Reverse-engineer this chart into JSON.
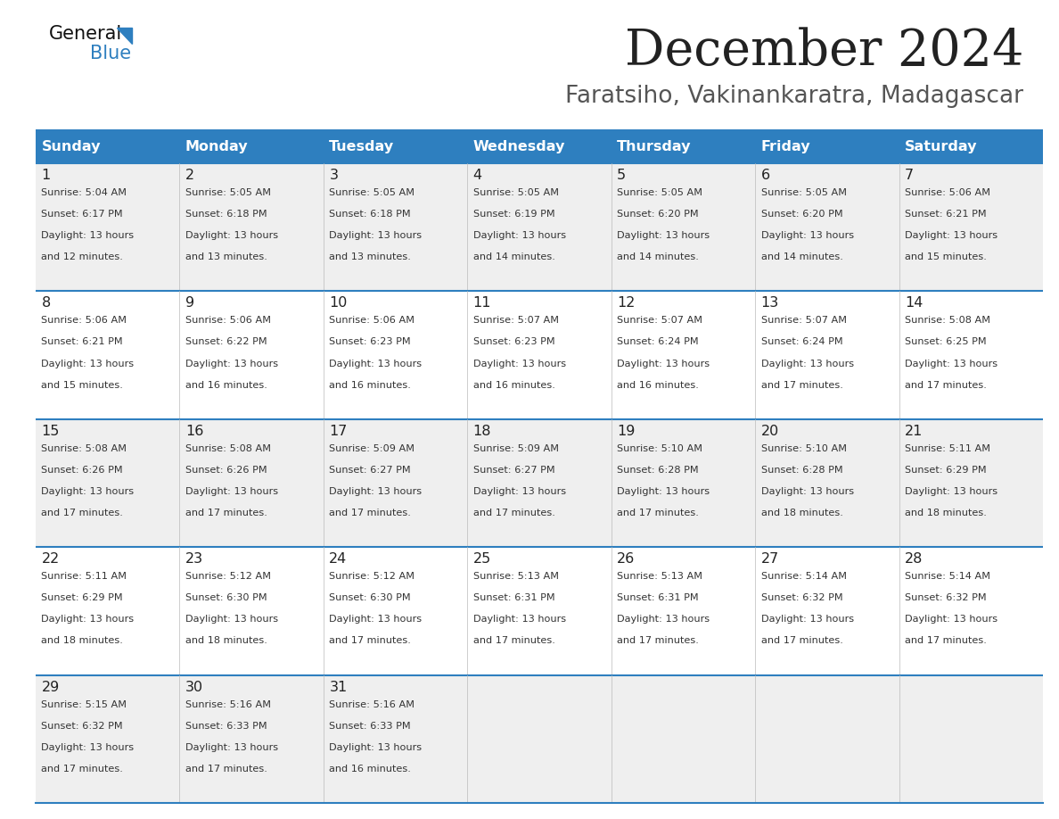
{
  "title": "December 2024",
  "subtitle": "Faratsiho, Vakinankaratra, Madagascar",
  "days_of_week": [
    "Sunday",
    "Monday",
    "Tuesday",
    "Wednesday",
    "Thursday",
    "Friday",
    "Saturday"
  ],
  "header_bg": "#2E7FBF",
  "header_text": "#FFFFFF",
  "row_bg_light": "#EFEFEF",
  "row_bg_white": "#FFFFFF",
  "day_num_color": "#222222",
  "text_color": "#333333",
  "line_color": "#2E7FBF",
  "title_color": "#222222",
  "subtitle_color": "#555555",
  "calendar": [
    [
      {
        "day": 1,
        "sunrise": "5:04 AM",
        "sunset": "6:17 PM",
        "daylight": "13 hours and 12 minutes."
      },
      {
        "day": 2,
        "sunrise": "5:05 AM",
        "sunset": "6:18 PM",
        "daylight": "13 hours and 13 minutes."
      },
      {
        "day": 3,
        "sunrise": "5:05 AM",
        "sunset": "6:18 PM",
        "daylight": "13 hours and 13 minutes."
      },
      {
        "day": 4,
        "sunrise": "5:05 AM",
        "sunset": "6:19 PM",
        "daylight": "13 hours and 14 minutes."
      },
      {
        "day": 5,
        "sunrise": "5:05 AM",
        "sunset": "6:20 PM",
        "daylight": "13 hours and 14 minutes."
      },
      {
        "day": 6,
        "sunrise": "5:05 AM",
        "sunset": "6:20 PM",
        "daylight": "13 hours and 14 minutes."
      },
      {
        "day": 7,
        "sunrise": "5:06 AM",
        "sunset": "6:21 PM",
        "daylight": "13 hours and 15 minutes."
      }
    ],
    [
      {
        "day": 8,
        "sunrise": "5:06 AM",
        "sunset": "6:21 PM",
        "daylight": "13 hours and 15 minutes."
      },
      {
        "day": 9,
        "sunrise": "5:06 AM",
        "sunset": "6:22 PM",
        "daylight": "13 hours and 16 minutes."
      },
      {
        "day": 10,
        "sunrise": "5:06 AM",
        "sunset": "6:23 PM",
        "daylight": "13 hours and 16 minutes."
      },
      {
        "day": 11,
        "sunrise": "5:07 AM",
        "sunset": "6:23 PM",
        "daylight": "13 hours and 16 minutes."
      },
      {
        "day": 12,
        "sunrise": "5:07 AM",
        "sunset": "6:24 PM",
        "daylight": "13 hours and 16 minutes."
      },
      {
        "day": 13,
        "sunrise": "5:07 AM",
        "sunset": "6:24 PM",
        "daylight": "13 hours and 17 minutes."
      },
      {
        "day": 14,
        "sunrise": "5:08 AM",
        "sunset": "6:25 PM",
        "daylight": "13 hours and 17 minutes."
      }
    ],
    [
      {
        "day": 15,
        "sunrise": "5:08 AM",
        "sunset": "6:26 PM",
        "daylight": "13 hours and 17 minutes."
      },
      {
        "day": 16,
        "sunrise": "5:08 AM",
        "sunset": "6:26 PM",
        "daylight": "13 hours and 17 minutes."
      },
      {
        "day": 17,
        "sunrise": "5:09 AM",
        "sunset": "6:27 PM",
        "daylight": "13 hours and 17 minutes."
      },
      {
        "day": 18,
        "sunrise": "5:09 AM",
        "sunset": "6:27 PM",
        "daylight": "13 hours and 17 minutes."
      },
      {
        "day": 19,
        "sunrise": "5:10 AM",
        "sunset": "6:28 PM",
        "daylight": "13 hours and 17 minutes."
      },
      {
        "day": 20,
        "sunrise": "5:10 AM",
        "sunset": "6:28 PM",
        "daylight": "13 hours and 18 minutes."
      },
      {
        "day": 21,
        "sunrise": "5:11 AM",
        "sunset": "6:29 PM",
        "daylight": "13 hours and 18 minutes."
      }
    ],
    [
      {
        "day": 22,
        "sunrise": "5:11 AM",
        "sunset": "6:29 PM",
        "daylight": "13 hours and 18 minutes."
      },
      {
        "day": 23,
        "sunrise": "5:12 AM",
        "sunset": "6:30 PM",
        "daylight": "13 hours and 18 minutes."
      },
      {
        "day": 24,
        "sunrise": "5:12 AM",
        "sunset": "6:30 PM",
        "daylight": "13 hours and 17 minutes."
      },
      {
        "day": 25,
        "sunrise": "5:13 AM",
        "sunset": "6:31 PM",
        "daylight": "13 hours and 17 minutes."
      },
      {
        "day": 26,
        "sunrise": "5:13 AM",
        "sunset": "6:31 PM",
        "daylight": "13 hours and 17 minutes."
      },
      {
        "day": 27,
        "sunrise": "5:14 AM",
        "sunset": "6:32 PM",
        "daylight": "13 hours and 17 minutes."
      },
      {
        "day": 28,
        "sunrise": "5:14 AM",
        "sunset": "6:32 PM",
        "daylight": "13 hours and 17 minutes."
      }
    ],
    [
      {
        "day": 29,
        "sunrise": "5:15 AM",
        "sunset": "6:32 PM",
        "daylight": "13 hours and 17 minutes."
      },
      {
        "day": 30,
        "sunrise": "5:16 AM",
        "sunset": "6:33 PM",
        "daylight": "13 hours and 17 minutes."
      },
      {
        "day": 31,
        "sunrise": "5:16 AM",
        "sunset": "6:33 PM",
        "daylight": "13 hours and 16 minutes."
      },
      null,
      null,
      null,
      null
    ]
  ]
}
